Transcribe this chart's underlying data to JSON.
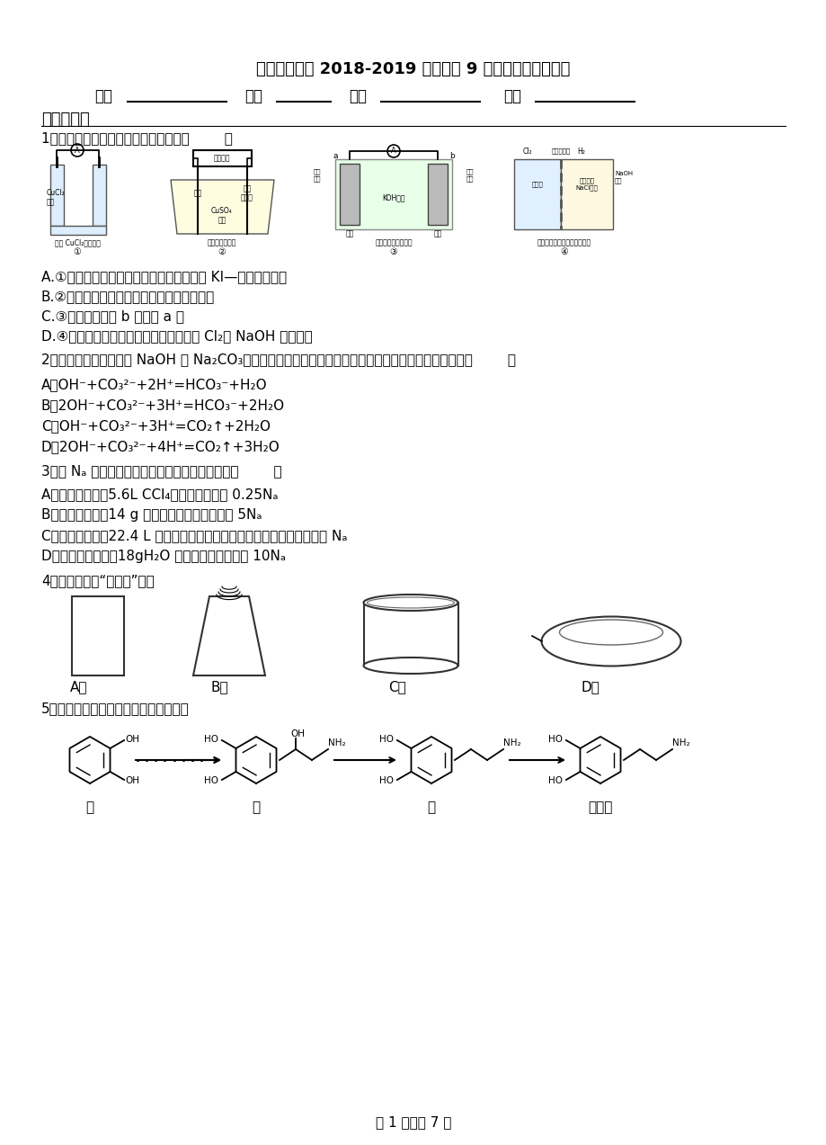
{
  "title": "安县高级中学 2018-2019 学年高二 9 月月考化学试题解析",
  "section1": "一、选择题",
  "q1_text": "1．下列有关图示实验的说法正确的是（        ）",
  "q1_opts": [
    "A.①装置中阴极处产生的气体能够使湿润的 KI—淠粉试纸变蓝",
    "B.②装置中待镀铁制品应与直流电源正极相连",
    "C.③装置中电子由 b 极流向 a 极",
    "D.④装置中的离子交换膜可以避免生成的 Cl₂与 NaOH 溶液反应"
  ],
  "q2_text": "2．向等物质的量浓度的 NaOH 和 Na₂CO₃的混合溶液中加入稀盐酸，下列离子方程式与事实不相符的是（        ）",
  "q2_opts": [
    "A．OH⁻+CO₃²⁻+2H⁺=HCO₃⁻+H₂O",
    "B．2OH⁻+CO₃²⁻+3H⁺=HCO₃⁻+2H₂O",
    "C．OH⁻+CO₃²⁻+3H⁺=CO₂↑+2H₂O",
    "D．2OH⁻+CO₃²⁻+4H⁺=CO₂↑+3H₂O"
  ],
  "q3_text": "3．设 Nₐ 为阿伏加德罗常数，下列说法正确的是（        ）",
  "q3_opts": [
    "A．标准状况下，5.6L CCl₄含有的分子数为 0.25Nₐ",
    "B．标准状况下，14 g 氮气含有的核外电子数为 5Nₐ",
    "C．标准状况下，22.4 L 任意比的氢气和氯气的混气中含有分子总数均为 Nₐ",
    "D．在标准状况下，18gH₂O 所含有的电子数不是 10Nₐ"
  ],
  "q4_text": "4．仪器名称为“蒸发皿”的是",
  "q5_text": "5．多巴胺的一种合成路线如下图所示：",
  "q5_labels": [
    "甲",
    "乙",
    "丙",
    "多巴胺"
  ],
  "footer": "第 1 页，共 7 页",
  "bg_color": "#ffffff"
}
